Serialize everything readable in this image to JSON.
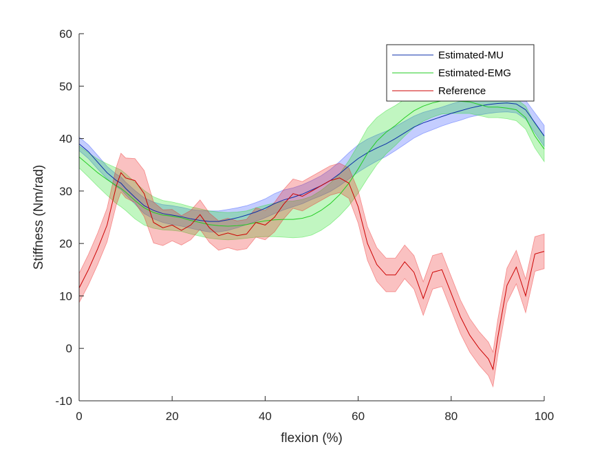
{
  "chart_data": {
    "type": "line",
    "title": "",
    "xlabel": "flexion (%)",
    "ylabel": "Stiffness (Nm/rad)",
    "xlim": [
      0,
      100
    ],
    "ylim": [
      -10,
      60
    ],
    "xticks": [
      0,
      20,
      40,
      60,
      80,
      100
    ],
    "yticks": [
      -10,
      0,
      10,
      20,
      30,
      40,
      50,
      60
    ],
    "grid": false,
    "legend_position": "top-right",
    "x": [
      0,
      2,
      4,
      6,
      8,
      9,
      10,
      12,
      14,
      16,
      18,
      20,
      22,
      24,
      26,
      28,
      30,
      32,
      34,
      36,
      38,
      40,
      42,
      44,
      46,
      48,
      50,
      52,
      54,
      56,
      58,
      60,
      62,
      64,
      66,
      68,
      70,
      72,
      74,
      76,
      78,
      80,
      82,
      84,
      86,
      88,
      89,
      90,
      92,
      94,
      96,
      98,
      100
    ],
    "series": [
      {
        "name": "Estimated-MU",
        "color": "#0a2ca8",
        "band_color": "#2c4cff",
        "values": [
          39,
          37.5,
          35.5,
          33.5,
          32,
          31.5,
          30.5,
          28.8,
          27.2,
          26.3,
          25.7,
          25.4,
          25.1,
          24.7,
          24.4,
          24.2,
          24.2,
          24.5,
          24.9,
          25.4,
          26,
          26.7,
          27.6,
          28.3,
          28.8,
          29.4,
          30.2,
          31,
          32,
          33.3,
          34.8,
          36.2,
          37.3,
          38.2,
          39,
          40,
          41.1,
          42.2,
          43,
          43.6,
          44.2,
          44.8,
          45.3,
          45.8,
          46.2,
          46.5,
          46.6,
          46.7,
          46.8,
          46.6,
          45.5,
          43,
          40.5
        ],
        "err": [
          1.3,
          1.3,
          1.3,
          1.2,
          1.2,
          1.2,
          1.2,
          1.3,
          1.5,
          1.6,
          1.7,
          1.8,
          1.8,
          1.8,
          1.9,
          2,
          2,
          2,
          1.9,
          1.8,
          1.8,
          1.8,
          1.9,
          1.9,
          1.8,
          1.8,
          1.8,
          1.9,
          2.1,
          2.3,
          2.5,
          2.6,
          2.6,
          2.5,
          2.4,
          2.3,
          2.2,
          2.1,
          2,
          1.9,
          1.8,
          1.8,
          1.8,
          1.7,
          1.7,
          1.7,
          1.7,
          1.7,
          1.7,
          1.7,
          1.8,
          1.9,
          2
        ]
      },
      {
        "name": "Estimated-EMG",
        "color": "#22cc22",
        "band_color": "#22dd22",
        "values": [
          36.5,
          35,
          33.5,
          32.2,
          31,
          30.5,
          29.8,
          28.2,
          26.8,
          25.9,
          25.4,
          25.2,
          24.9,
          24.4,
          24,
          23.6,
          23.4,
          23.3,
          23.4,
          23.6,
          24,
          24.3,
          24.5,
          24.6,
          24.6,
          24.8,
          25.3,
          26.3,
          27.6,
          29.3,
          31.5,
          34.2,
          37.2,
          39.5,
          41.2,
          42.5,
          44,
          45.3,
          46.2,
          46.8,
          47.2,
          47.2,
          47.1,
          47,
          46.5,
          46,
          46,
          46,
          45.8,
          45.5,
          44,
          40.5,
          38
        ],
        "err": [
          2.1,
          2.3,
          2.6,
          3,
          3.4,
          3.5,
          3.5,
          3.5,
          3.3,
          3,
          2.8,
          2.7,
          2.6,
          2.6,
          2.6,
          2.6,
          2.6,
          2.6,
          2.6,
          2.6,
          2.8,
          3,
          3.2,
          3.4,
          3.5,
          3.6,
          3.7,
          3.8,
          3.9,
          4,
          4.3,
          4.6,
          4.8,
          4.5,
          4.1,
          3.8,
          3.5,
          3.2,
          2.9,
          2.7,
          2.5,
          2.4,
          2.3,
          2.2,
          2.1,
          2,
          2,
          2,
          2,
          2.1,
          2.2,
          2.3,
          2.4
        ]
      },
      {
        "name": "Reference",
        "color": "#cc0000",
        "band_color": "#ee2222",
        "values": [
          11.5,
          15,
          19,
          23.5,
          31,
          33.5,
          32.5,
          32,
          29.5,
          24,
          23,
          23.5,
          22.5,
          23.5,
          25.5,
          23,
          21.5,
          22,
          21.5,
          21.8,
          24,
          23.5,
          25,
          27.5,
          29.5,
          29,
          30,
          31,
          32,
          32.5,
          31.5,
          27,
          20,
          16,
          14,
          14,
          16.5,
          14.5,
          9.5,
          14.5,
          15,
          10.5,
          6,
          2.5,
          0,
          -2,
          -4,
          2,
          12,
          15.5,
          10,
          18,
          18.5
        ],
        "err": [
          2.8,
          2.9,
          3,
          3.2,
          3.6,
          3.7,
          3.8,
          4.2,
          4.4,
          3.9,
          3.4,
          3,
          2.8,
          2.8,
          2.8,
          2.8,
          2.8,
          2.8,
          2.8,
          2.8,
          2.8,
          2.8,
          2.8,
          2.8,
          2.8,
          2.8,
          2.8,
          2.8,
          2.8,
          2.8,
          2.9,
          3.1,
          3.2,
          3.2,
          3.2,
          3.2,
          3.2,
          3.2,
          3.2,
          3.2,
          3.2,
          3.2,
          3.2,
          3.2,
          3.2,
          3.2,
          3.3,
          3.4,
          3.3,
          3.2,
          3.2,
          3.3,
          3.3
        ]
      }
    ]
  }
}
